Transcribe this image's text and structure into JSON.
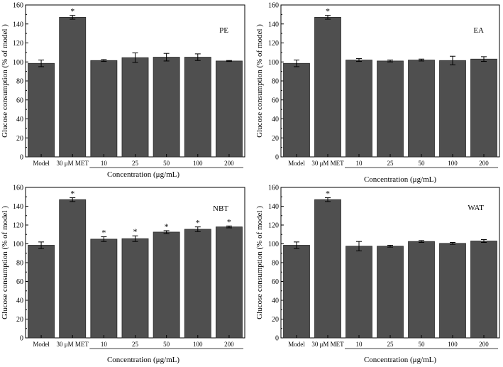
{
  "colors": {
    "bar": "#4f4f4f",
    "axis": "#000000",
    "background": "#ffffff"
  },
  "chart_data": [
    {
      "type": "bar",
      "label": "PE",
      "categories": [
        "Model",
        "30 μM MET",
        "10",
        "25",
        "50",
        "100",
        "200"
      ],
      "values": [
        98.5,
        147,
        101.5,
        104.5,
        105,
        105,
        101
      ],
      "errors": [
        3.5,
        2,
        1,
        5,
        4,
        3.5,
        0.5
      ],
      "significant": [
        "",
        "*",
        "",
        "",
        "",
        "",
        ""
      ],
      "ylabel": "Glucose consumption (% of model )",
      "xlabel": "Concentration (μg/mL)",
      "ylim": [
        0,
        160
      ],
      "yticks": [
        "0",
        "20",
        "40",
        "60",
        "80",
        "100",
        "120",
        "140",
        "160"
      ]
    },
    {
      "type": "bar",
      "label": "EA",
      "categories": [
        "Model",
        "30 μM MET",
        "10",
        "25",
        "50",
        "100",
        "200"
      ],
      "values": [
        98.5,
        147,
        102,
        101,
        102,
        101.5,
        103
      ],
      "errors": [
        3.5,
        2,
        1.5,
        1,
        1,
        4.5,
        2.5
      ],
      "significant": [
        "",
        "*",
        "",
        "",
        "",
        "",
        ""
      ],
      "ylabel": "Glucose consumption (% of model )",
      "xlabel": "Concentration (μg/mL)",
      "ylim": [
        0,
        160
      ],
      "yticks": [
        "0",
        "20",
        "40",
        "60",
        "80",
        "100",
        "120",
        "140",
        "160"
      ]
    },
    {
      "type": "bar",
      "label": "NBT",
      "categories": [
        "Model",
        "30 μM MET",
        "10",
        "25",
        "50",
        "100",
        "200"
      ],
      "values": [
        98.5,
        147,
        105,
        105.5,
        112.5,
        115.5,
        118
      ],
      "errors": [
        3.5,
        2,
        2.5,
        3,
        1.5,
        2.5,
        1
      ],
      "significant": [
        "",
        "*",
        "*",
        "*",
        "*",
        "*",
        "*"
      ],
      "ylabel": "Glucose consumption (% of model )",
      "xlabel": "Concentration (μg/mL)",
      "ylim": [
        0,
        160
      ],
      "yticks": [
        "0",
        "20",
        "40",
        "60",
        "80",
        "100",
        "120",
        "140",
        "160"
      ]
    },
    {
      "type": "bar",
      "label": "WAT",
      "categories": [
        "Model",
        "30 μM MET",
        "10",
        "25",
        "50",
        "100",
        "200"
      ],
      "values": [
        98.5,
        147,
        97.5,
        97.5,
        102.5,
        100.5,
        103
      ],
      "errors": [
        3.5,
        2,
        5,
        1,
        1,
        1,
        1.5
      ],
      "significant": [
        "",
        "*",
        "",
        "",
        "",
        "",
        ""
      ],
      "ylabel": "Glucose consumption (% of model )",
      "xlabel": "Concentration (μg/mL)",
      "ylim": [
        0,
        160
      ],
      "yticks": [
        "0",
        "20",
        "40",
        "60",
        "80",
        "100",
        "120",
        "140",
        "160"
      ]
    }
  ]
}
